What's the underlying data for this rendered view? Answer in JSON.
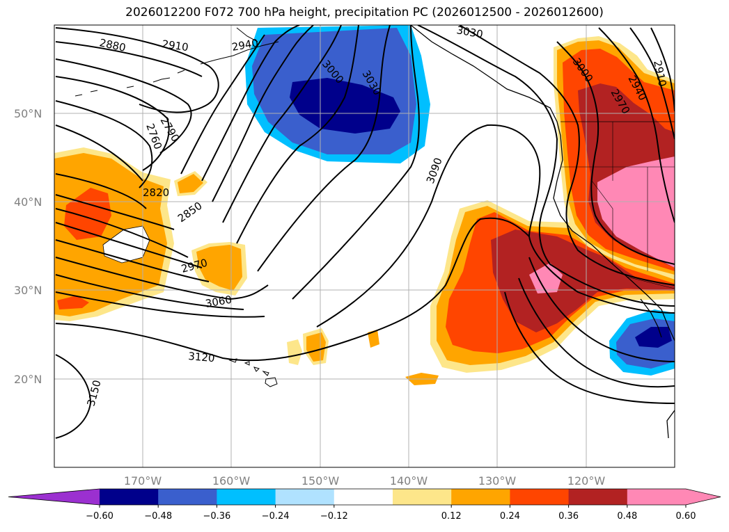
{
  "title": "2026012200 F072 700 hPa height, precipitation PC (2026012500 - 2026012600)",
  "lat_labels": [
    "50°N",
    "40°N",
    "30°N",
    "20°N"
  ],
  "lon_labels": [
    "170°W",
    "160°W",
    "150°W",
    "140°W",
    "130°W",
    "120°W"
  ],
  "contour_labels": [
    "2880",
    "2910",
    "2940",
    "3000",
    "3030",
    "3030",
    "2790",
    "2760",
    "2820",
    "2850",
    "2970",
    "3060",
    "3120",
    "3150",
    "3090",
    "3000",
    "2940",
    "2970",
    "2910"
  ],
  "colorbar": {
    "colors": [
      "#9b30d0",
      "#00008b",
      "#3a5fcd",
      "#00bfff",
      "#b0e2ff",
      "#ffffff",
      "#fde68a",
      "#ffa500",
      "#ff4500",
      "#b22222",
      "#ff88b5",
      "#ff88b5"
    ],
    "ticks": [
      "−0.60",
      "−0.48",
      "−0.36",
      "−0.24",
      "−0.12",
      "0.12",
      "0.24",
      "0.36",
      "0.48",
      "0.60"
    ]
  }
}
